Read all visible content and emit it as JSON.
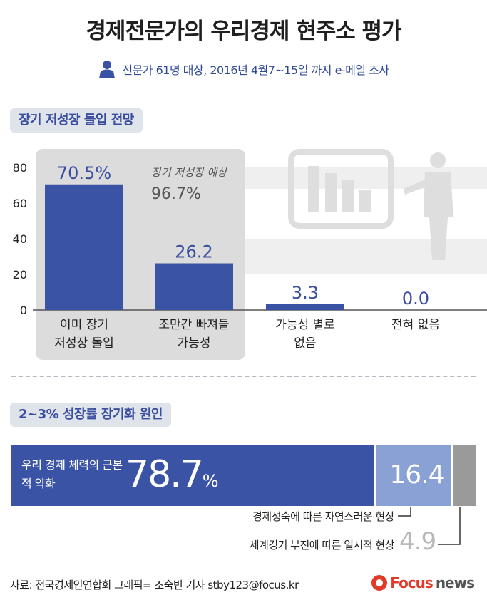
{
  "title": "경제전문가의 우리경제 현주소 평가",
  "subtitle": "전문가 61명 대상, 2016년 4월7~15일 까지 e-메일 조사",
  "section1_title": "장기 저성장 돌입 전망",
  "section2_title": "2~3% 성장률 장기화 원인",
  "annotation": {
    "label": "장기 저성장 예상",
    "value": "96.7%"
  },
  "colors": {
    "bar": "#3a53a4",
    "accent": "#3a4ea0",
    "highlight_box": "#dcdcdc",
    "light_bar": "#8aa1d6",
    "gray_bar": "#9a9a9a"
  },
  "chart_data": [
    {
      "type": "bar",
      "categories": [
        [
          "이미 장기",
          "저성장 돌입"
        ],
        [
          "조만간 빠져들",
          "가능성"
        ],
        [
          "가능성 별로",
          "없음"
        ],
        [
          "전혀 없음"
        ]
      ],
      "values": [
        70.5,
        26.2,
        3.3,
        0.0
      ],
      "value_labels": [
        "70.5%",
        "26.2",
        "3.3",
        "0.0"
      ],
      "yticks": [
        "0",
        "20",
        "40",
        "60",
        "80"
      ],
      "ylim": [
        0,
        80
      ],
      "grid": false
    },
    {
      "type": "bar",
      "orientation": "horizontal-stacked",
      "segments": [
        {
          "label": "우리 경제 체력의 근본적 약화",
          "value": 78.7,
          "value_text": "78.7",
          "unit": "%"
        },
        {
          "label": "경제성숙에 따른 자연스러운 현상",
          "value": 16.4,
          "value_text": "16.4"
        },
        {
          "label": "세계경기 부진에 따른 일시적 현상",
          "value": 4.9,
          "value_text": "4.9"
        }
      ]
    }
  ],
  "source": "자료: 전국경제인연합회  그래픽= 조숙빈 기자 stby123@focus.kr",
  "brand": {
    "name1": "Focus",
    "name2": "news"
  },
  "icons": [
    "person-icon",
    "chart-board-icon",
    "presenter-silhouette-icon",
    "focus-logo-icon"
  ]
}
